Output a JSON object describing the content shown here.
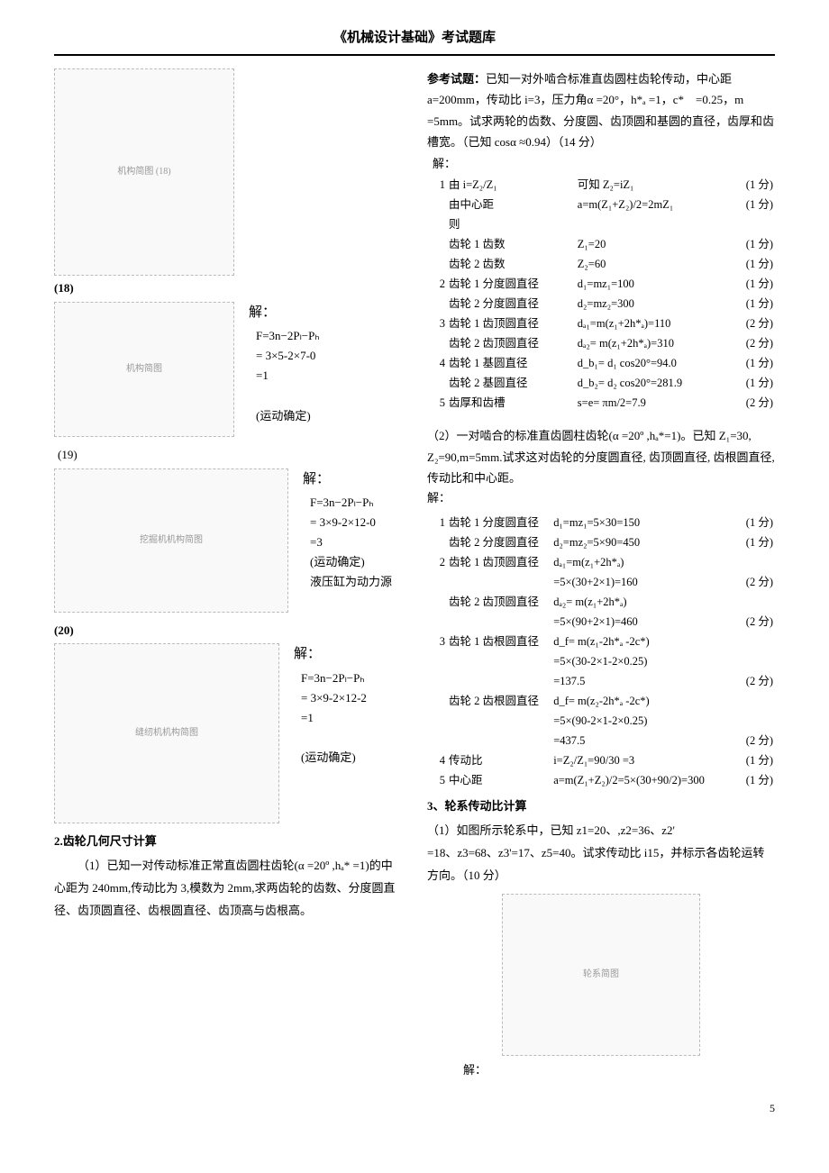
{
  "header": {
    "title": "《机械设计基础》考试题库"
  },
  "left": {
    "p18": {
      "label": "(18)",
      "diagram_note": "机构简图 (18)"
    },
    "p18b": {
      "diagram_note": "机构简图",
      "sol_header": "解：",
      "line1": "F=3n−2Pₗ−Pₕ",
      "line2": " = 3×5-2×7-0",
      "line3": " =1",
      "line4": "(运动确定)"
    },
    "p19": {
      "label": "(19)",
      "diagram_note": "挖掘机机构简图",
      "sol_header": "解：",
      "line1": "F=3n−2Pₗ−Pₕ",
      "line2": " = 3×9-2×12-0",
      "line3": " =3",
      "line4": "(运动确定)",
      "line5": "液压缸为动力源"
    },
    "p20": {
      "label": "(20)",
      "diagram_note": "缝纫机机构简图",
      "sol_header": "解：",
      "line1": "F=3n−2Pₗ−Pₕ",
      "line2": " = 3×9-2×12-2",
      "line3": " =1",
      "line4": "(运动确定)"
    },
    "sec2": {
      "title": "2.齿轮几何尺寸计算",
      "q1": "（1）已知一对传动标准正常直齿圆柱齿轮(α =20º ,hₐ* =1)的中心距为 240mm,传动比为 3,模数为 2mm,求两齿轮的齿数、分度圆直径、齿顶圆直径、齿根圆直径、齿顶高与齿根高。"
    }
  },
  "right": {
    "ref": {
      "lead": "参考试题：",
      "body": "已知一对外啮合标准直齿圆柱齿轮传动，中心距 a=200mm，传动比 i=3，压力角α =20°，h*ₐ =1，c*　=0.25，m =5mm。试求两轮的齿数、分度圆、齿顶圆和基圆的直径，齿厚和齿槽宽。（已知 cosα ≈0.94）（14 分）",
      "jie": "解："
    },
    "ans1": [
      {
        "n": "1",
        "l": "由 i=Z₂/Z₁",
        "e": "可知 Z₂=iZ₁",
        "p": "(1 分)"
      },
      {
        "n": "",
        "l": "由中心距",
        "e": "a=m(Z₁+Z₂)/2=2mZ₁",
        "p": "(1 分)"
      },
      {
        "n": "",
        "l": "则",
        "e": "",
        "p": ""
      },
      {
        "n": "",
        "l": "齿轮 1 齿数",
        "e": "Z₁=20",
        "p": "(1 分)"
      },
      {
        "n": "",
        "l": "齿轮 2 齿数",
        "e": "Z₂=60",
        "p": "(1 分)"
      },
      {
        "n": "2",
        "l": "齿轮 1 分度圆直径",
        "e": "d₁=mz₁=100",
        "p": "(1 分)"
      },
      {
        "n": "",
        "l": "齿轮 2 分度圆直径",
        "e": "d₂=mz₂=300",
        "p": "(1 分)"
      },
      {
        "n": "3",
        "l": "齿轮 1 齿顶圆直径",
        "e": "dₐ₁=m(z₁+2h*ₐ)=110",
        "p": "(2 分)"
      },
      {
        "n": "",
        "l": "齿轮 2 齿顶圆直径",
        "e": "dₐ₂= m(z₁+2h*ₐ)=310",
        "p": "(2 分)"
      },
      {
        "n": "4",
        "l": "齿轮 1 基圆直径",
        "e": "d_b₁= d₁ cos20°=94.0",
        "p": "(1 分)"
      },
      {
        "n": "",
        "l": "齿轮 2 基圆直径",
        "e": "d_b₂= d₂ cos20°=281.9",
        "p": "(1 分)"
      },
      {
        "n": "5",
        "l": "齿厚和齿槽",
        "e": "s=e= πm/2=7.9",
        "p": "(2 分)"
      }
    ],
    "q2": {
      "body": "（2）一对啮合的标准直齿圆柱齿轮(α =20º ,hₐ*=1)。已知 Z₁=30, Z₂=90,m=5mm.试求这对齿轮的分度圆直径, 齿顶圆直径, 齿根圆直径, 传动比和中心距。",
      "jie": "解："
    },
    "ans2": [
      {
        "n": "1",
        "l": "齿轮 1 分度圆直径",
        "e": "d₁=mz₁=5×30=150",
        "p": "(1 分)"
      },
      {
        "n": "",
        "l": "齿轮 2 分度圆直径",
        "e": "d₂=mz₂=5×90=450",
        "p": "(1 分)"
      },
      {
        "n": "2",
        "l": "齿轮 1 齿顶圆直径",
        "e": "dₐ₁=m(z₁+2h*ₐ)",
        "p": ""
      },
      {
        "n": "",
        "l": "",
        "e": "=5×(30+2×1)=160",
        "p": "(2 分)"
      },
      {
        "n": "",
        "l": "齿轮 2 齿顶圆直径",
        "e": "dₐ₂= m(z₁+2h*ₐ)",
        "p": ""
      },
      {
        "n": "",
        "l": "",
        "e": "=5×(90+2×1)=460",
        "p": "(2 分)"
      },
      {
        "n": "3",
        "l": "齿轮 1 齿根圆直径",
        "e": "d_f= m(z₁-2h*ₐ -2c*)",
        "p": ""
      },
      {
        "n": "",
        "l": "",
        "e": "=5×(30-2×1-2×0.25)",
        "p": ""
      },
      {
        "n": "",
        "l": "",
        "e": "=137.5",
        "p": "(2 分)"
      },
      {
        "n": "",
        "l": "齿轮 2 齿根圆直径",
        "e": "d_f= m(z₂-2h*ₐ -2c*)",
        "p": ""
      },
      {
        "n": "",
        "l": "",
        "e": "=5×(90-2×1-2×0.25)",
        "p": ""
      },
      {
        "n": "",
        "l": "",
        "e": "=437.5",
        "p": "(2 分)"
      },
      {
        "n": "4",
        "l": "传动比",
        "e": "i=Z₂/Z₁=90/30 =3",
        "p": "(1 分)"
      },
      {
        "n": "5",
        "l": "中心距",
        "e": "a=m(Z₁+Z₂)/2=5×(30+90/2)=300",
        "p": "(1 分)"
      }
    ],
    "sec3": {
      "title": "3、轮系传动比计算",
      "q1a": "（1）如图所示轮系中，已知 z1=20、,z2=36、z2'",
      "q1b": "=18、z3=68、z3'=17、z5=40。试求传动比 i15，并标示各齿轮运转方向。（10 分）",
      "diagram_note": "轮系简图",
      "jie": "解："
    }
  },
  "footer": {
    "page": "5"
  }
}
